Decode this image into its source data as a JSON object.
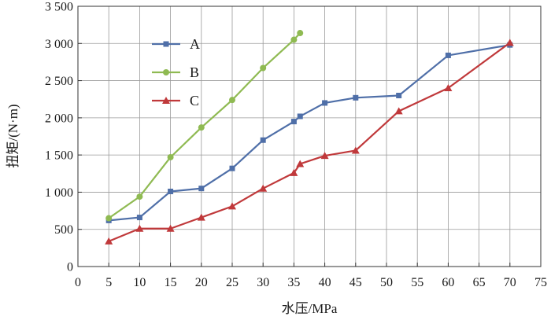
{
  "chart_data": {
    "type": "line",
    "title": "",
    "xlabel": "水压/MPa",
    "ylabel": "扭矩/(N·m)",
    "xlim": [
      0,
      75
    ],
    "ylim": [
      0,
      3500
    ],
    "x_ticks": [
      "0",
      "5",
      "10",
      "15",
      "20",
      "25",
      "30",
      "35",
      "40",
      "45",
      "50",
      "55",
      "60",
      "65",
      "70",
      "75"
    ],
    "y_ticks": [
      "0",
      "500",
      "1 000",
      "1 500",
      "2 000",
      "2 500",
      "3 000",
      "3 500"
    ],
    "grid": true,
    "legend_position": "top-left",
    "series": [
      {
        "name": "A",
        "color": "#4f6fa8",
        "marker": "square",
        "x": [
          5,
          10,
          15,
          20,
          25,
          30,
          35,
          36,
          40,
          45,
          52,
          60,
          70
        ],
        "y": [
          620,
          660,
          1010,
          1050,
          1320,
          1700,
          1950,
          2020,
          2200,
          2270,
          2300,
          2840,
          2980
        ]
      },
      {
        "name": "B",
        "color": "#8fba52",
        "marker": "circle",
        "x": [
          5,
          10,
          15,
          20,
          25,
          30,
          35,
          36
        ],
        "y": [
          650,
          940,
          1470,
          1870,
          2240,
          2670,
          3050,
          3140
        ]
      },
      {
        "name": "C",
        "color": "#c0393b",
        "marker": "triangle",
        "x": [
          5,
          10,
          15,
          20,
          25,
          30,
          35,
          36,
          40,
          45,
          52,
          60,
          70
        ],
        "y": [
          340,
          510,
          510,
          660,
          810,
          1050,
          1260,
          1380,
          1490,
          1560,
          2090,
          2400,
          3010
        ]
      }
    ]
  }
}
